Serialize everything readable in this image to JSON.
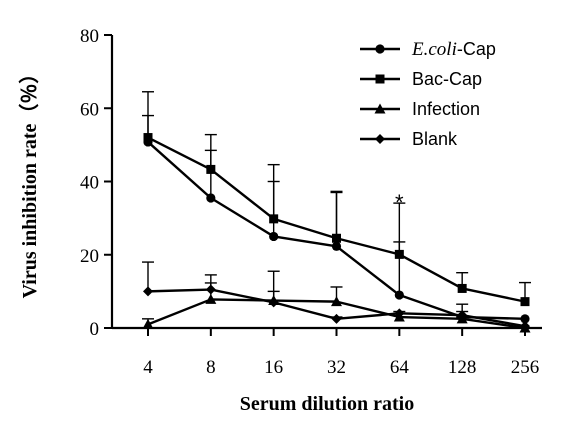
{
  "chart_data": {
    "type": "line",
    "xlabel": "Serum dilution ratio",
    "ylabel": "Virus inhibition rate（％）",
    "categories": [
      "4",
      "8",
      "16",
      "32",
      "64",
      "128",
      "256"
    ],
    "ylim": [
      0,
      80
    ],
    "yticks": [
      0,
      20,
      40,
      60,
      80
    ],
    "grid": false,
    "legend_position": "top-right",
    "series": [
      {
        "name": "E.coli-Cap",
        "name_parts": [
          "E.coli",
          "-Cap"
        ],
        "marker": "circle",
        "values": [
          50.8,
          35.5,
          25.0,
          22.3,
          9.0,
          3.0,
          2.5
        ],
        "error": [
          7.2,
          13.0,
          15.0,
          15.0,
          14.5,
          3.5,
          0
        ]
      },
      {
        "name": "Bac-Cap",
        "marker": "square",
        "values": [
          52.0,
          43.3,
          29.8,
          24.5,
          20.1,
          10.8,
          7.2
        ],
        "error": [
          12.5,
          9.5,
          14.8,
          12.5,
          14.0,
          4.3,
          5.2
        ]
      },
      {
        "name": "Infection",
        "marker": "triangle",
        "values": [
          1.0,
          7.8,
          7.5,
          7.2,
          3.0,
          2.5,
          0.0
        ],
        "error": [
          1.5,
          4.5,
          8.0,
          4.0,
          1.0,
          0.5,
          0
        ]
      },
      {
        "name": "Blank",
        "marker": "diamond",
        "values": [
          10.0,
          10.5,
          7.0,
          2.5,
          4.0,
          3.5,
          0.5
        ],
        "error": [
          8.0,
          4.0,
          3.0,
          0.5,
          0.5,
          1.0,
          0
        ]
      }
    ],
    "annotations": [
      {
        "text": "*",
        "category": "64",
        "y": 36
      }
    ]
  }
}
